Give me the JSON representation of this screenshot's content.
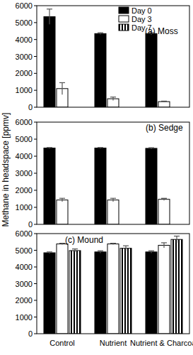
{
  "chart_data": [
    {
      "type": "bar",
      "title": "(a) Moss",
      "y_label": "Methane in headspace [ppmv]",
      "categories": [
        "Control",
        "Nutrient",
        "Nutrient & Charcoal"
      ],
      "series": [
        {
          "name": "Day 0",
          "color": "#000000",
          "values": [
            5350,
            4350,
            4350
          ],
          "errors": [
            450,
            50,
            60
          ]
        },
        {
          "name": "Day 3",
          "color": "#ffffff",
          "values": [
            1100,
            500,
            330
          ],
          "errors": [
            350,
            100,
            30
          ]
        },
        {
          "name": "Day 7",
          "color": "#000000",
          "marker": "stripes",
          "values": [
            null,
            null,
            null
          ],
          "errors": [
            null,
            null,
            null
          ]
        }
      ],
      "ylim": [
        0,
        6000
      ],
      "yticks": [
        0,
        1000,
        2000,
        3000,
        4000,
        5000,
        6000
      ],
      "legend": "upper right",
      "tick_labels": "y"
    },
    {
      "type": "bar",
      "title": "(b) Sedge",
      "categories": [
        "Control",
        "Nutrient",
        "Nutrient & Charcoal"
      ],
      "series": [
        {
          "name": "Day 0",
          "color": "#000000",
          "values": [
            4480,
            4480,
            4460
          ],
          "errors": [
            30,
            30,
            40
          ]
        },
        {
          "name": "Day 3",
          "color": "#ffffff",
          "values": [
            1430,
            1430,
            1470
          ],
          "errors": [
            100,
            100,
            60
          ]
        },
        {
          "name": "Day 7",
          "color": "#000000",
          "marker": "stripes",
          "values": [
            null,
            null,
            null
          ],
          "errors": [
            null,
            null,
            null
          ]
        }
      ],
      "ylim": [
        0,
        6000
      ],
      "yticks": [
        0,
        1000,
        2000,
        3000,
        4000,
        5000,
        6000
      ],
      "tick_labels": "y"
    },
    {
      "type": "bar",
      "title": "(c) Mound",
      "categories": [
        "Control",
        "Nutrient",
        "Nutrient & Charcoal"
      ],
      "series": [
        {
          "name": "Day 0",
          "color": "#000000",
          "values": [
            4850,
            4900,
            4900
          ],
          "errors": [
            50,
            70,
            70
          ]
        },
        {
          "name": "Day 3",
          "color": "#ffffff",
          "values": [
            5380,
            5380,
            5300
          ],
          "errors": [
            40,
            40,
            150
          ]
        },
        {
          "name": "Day 7",
          "color": "#000000",
          "marker": "stripes",
          "values": [
            4980,
            5120,
            5650
          ],
          "errors": [
            100,
            150,
            200
          ]
        }
      ],
      "ylim": [
        0,
        6000
      ],
      "yticks": [
        0,
        1000,
        2000,
        3000,
        4000,
        5000,
        6000
      ]
    }
  ]
}
